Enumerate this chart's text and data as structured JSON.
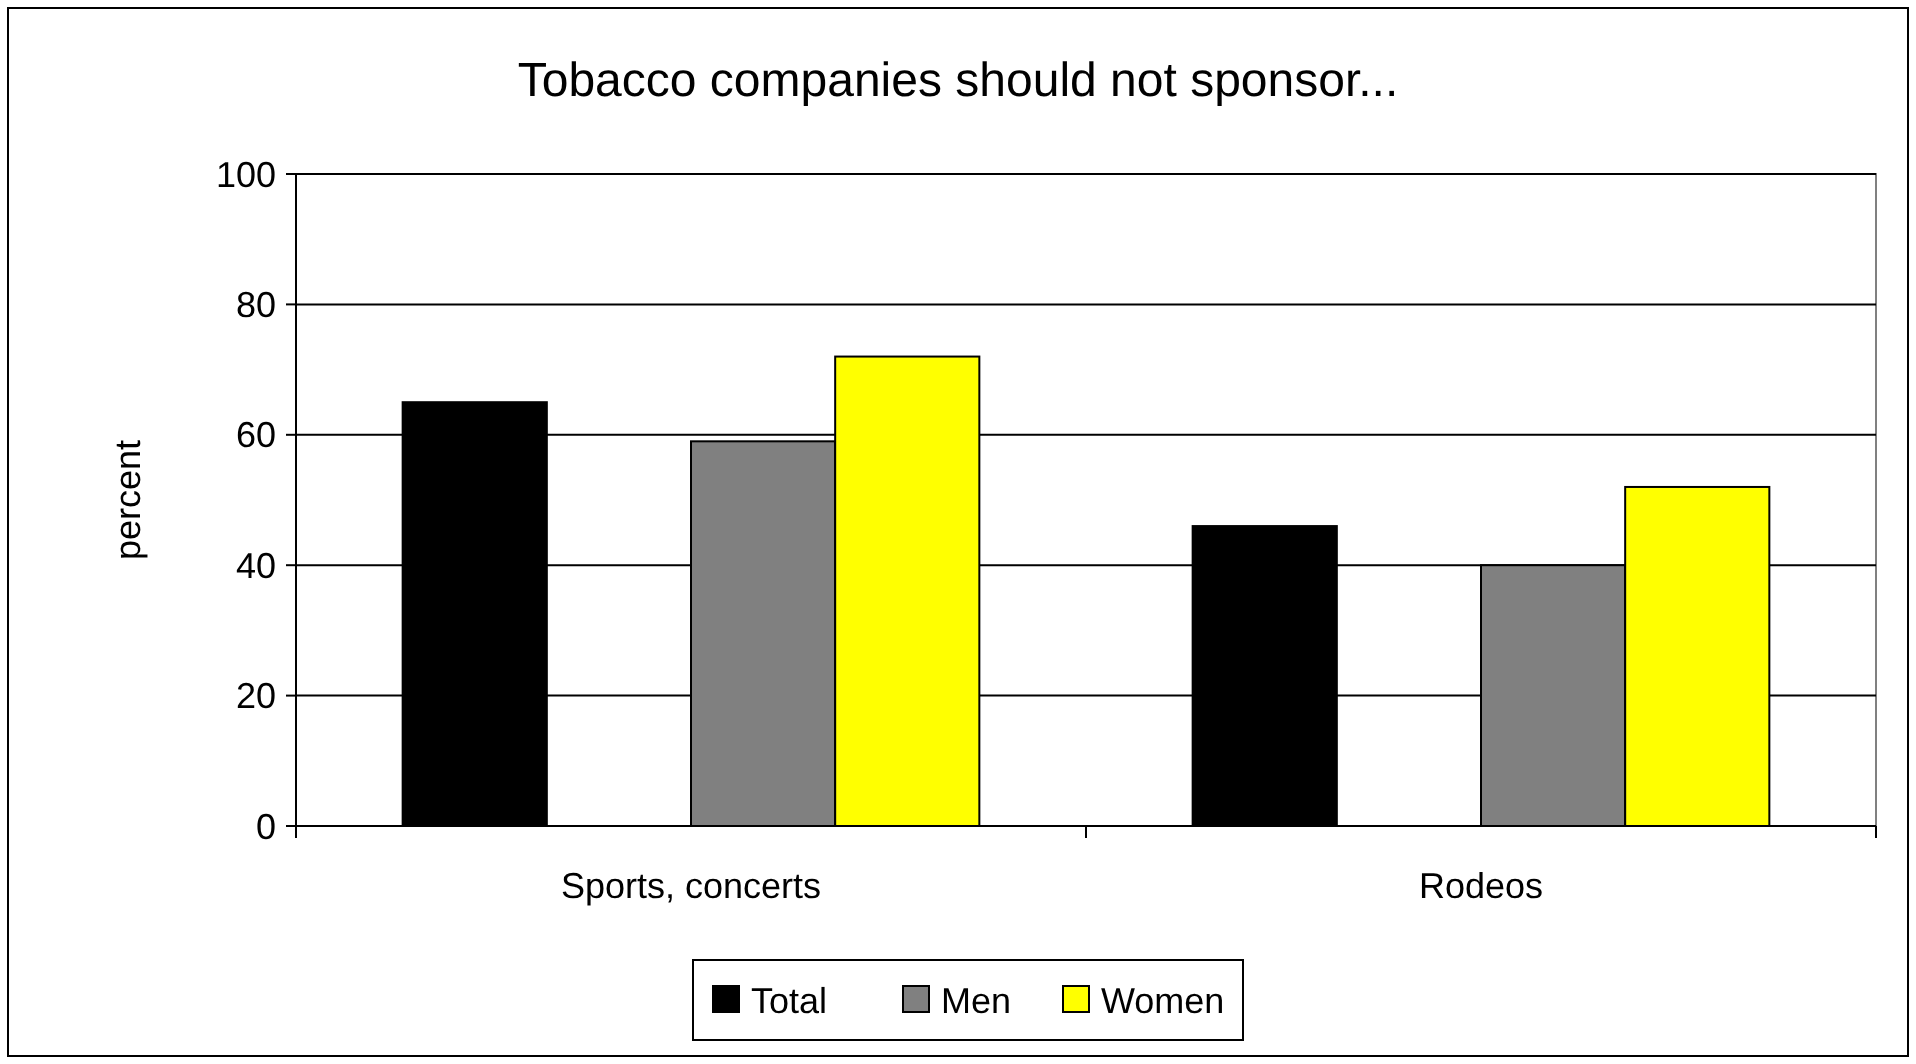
{
  "chart_data": {
    "type": "bar",
    "title": "Tobacco companies should not sponsor...",
    "ylabel": "percent",
    "categories": [
      "Sports, concerts",
      "Rodeos"
    ],
    "series": [
      {
        "name": "Total",
        "color": "#000000",
        "values": [
          65,
          46
        ]
      },
      {
        "name": "Men",
        "color": "#808080",
        "values": [
          59,
          40
        ]
      },
      {
        "name": "Women",
        "color": "#ffff00",
        "values": [
          72,
          52
        ]
      }
    ],
    "ylim": [
      0,
      100
    ],
    "yticks": [
      0,
      20,
      40,
      60,
      80,
      100
    ],
    "grid": "y",
    "legend": "bottom"
  }
}
